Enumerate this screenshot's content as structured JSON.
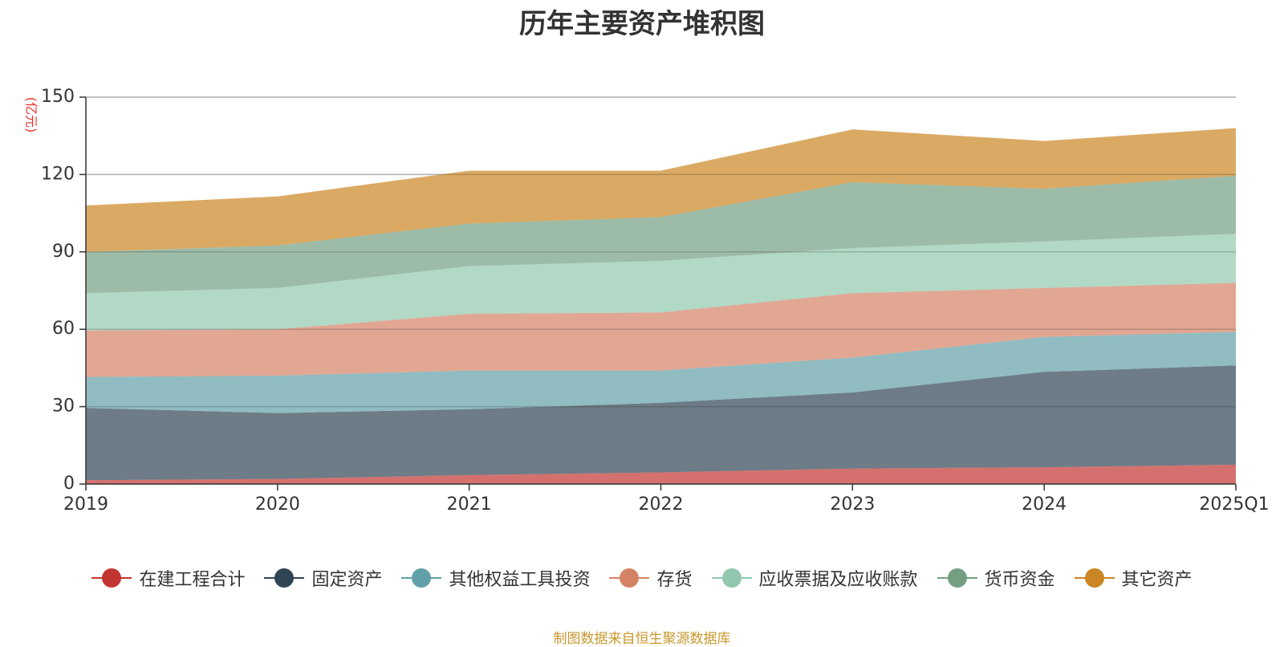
{
  "chart_data": {
    "type": "area",
    "stacked": true,
    "title": "历年主要资产堆积图",
    "ylabel": "(亿元)",
    "xlabel": "",
    "ylim": [
      0,
      150
    ],
    "yticks": [
      0,
      30,
      60,
      90,
      120,
      150
    ],
    "categories": [
      "2019",
      "2020",
      "2021",
      "2022",
      "2023",
      "2024",
      "2025Q1"
    ],
    "series": [
      {
        "name": "在建工程合计",
        "color": "#c23531",
        "values": [
          1.5,
          2,
          3.5,
          4.5,
          6,
          6.5,
          7.5
        ]
      },
      {
        "name": "固定资产",
        "color": "#2f4554",
        "values": [
          28,
          25.5,
          25.5,
          27,
          29.5,
          37,
          38.5
        ]
      },
      {
        "name": "其他权益工具投资",
        "color": "#61a0a8",
        "values": [
          12,
          14.5,
          15,
          12.5,
          13.5,
          13.5,
          13
        ]
      },
      {
        "name": "存货",
        "color": "#d48265",
        "values": [
          18,
          18,
          22,
          22.5,
          25,
          19,
          19
        ]
      },
      {
        "name": "应收票据及应收账款",
        "color": "#91c7ae",
        "values": [
          14.5,
          16,
          18.5,
          20,
          17.5,
          18,
          19
        ]
      },
      {
        "name": "货币资金",
        "color": "#749f83",
        "values": [
          16,
          16.5,
          16.5,
          17,
          25.5,
          20.5,
          22.5
        ]
      },
      {
        "name": "其它资产",
        "color": "#ca8622",
        "values": [
          18,
          19,
          20.5,
          18,
          20.5,
          18.5,
          18.5
        ]
      }
    ],
    "legend_position": "bottom"
  },
  "footer": {
    "source": "制图数据来自恒生聚源数据库"
  }
}
